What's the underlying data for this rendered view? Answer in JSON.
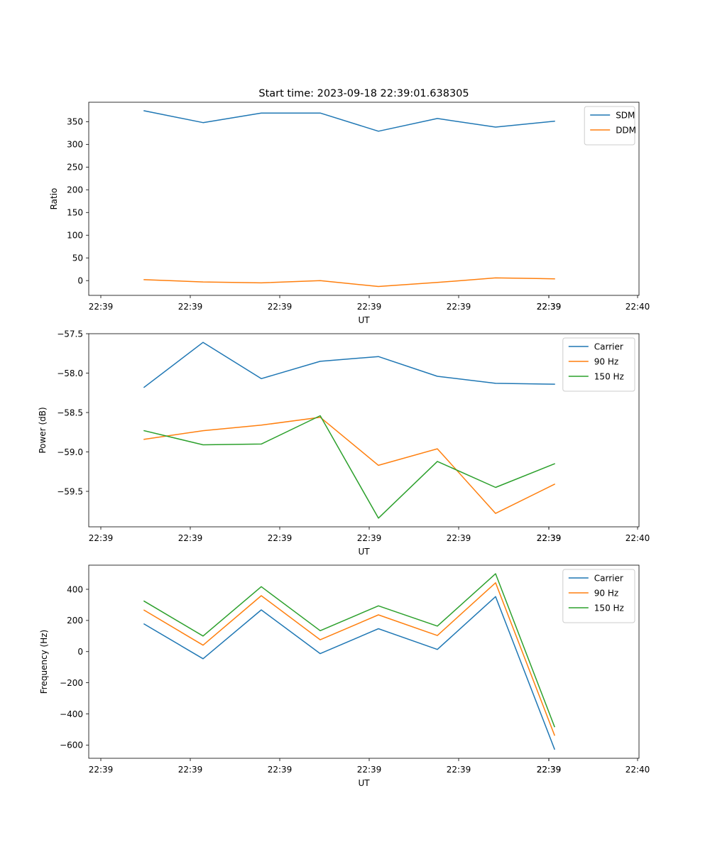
{
  "figure_title": "Start time: 2023-09-18 22:39:01.638305",
  "chart_data": [
    {
      "type": "line",
      "title": "Start time: 2023-09-18 22:39:01.638305",
      "xlabel": "UT",
      "ylabel": "Ratio",
      "x_ticks": [
        "22:39",
        "22:39",
        "22:39",
        "22:39",
        "22:39",
        "22:39",
        "22:39",
        "22:40"
      ],
      "y_ticks": [
        "0",
        "50",
        "100",
        "150",
        "200",
        "250",
        "300",
        "350"
      ],
      "y_tick_values": [
        0,
        50,
        100,
        150,
        200,
        250,
        300,
        350
      ],
      "ylim": [
        -32.5,
        392.8
      ],
      "legend_position": "top-right",
      "series": [
        {
          "name": "SDM",
          "color": "#1f77b4",
          "values": [
            374,
            348,
            369,
            369,
            329,
            357,
            338,
            351
          ]
        },
        {
          "name": "DDM",
          "color": "#ff7f0e",
          "values": [
            2,
            -3,
            -5,
            0,
            -13,
            -4,
            6,
            4
          ]
        }
      ]
    },
    {
      "type": "line",
      "title": "",
      "xlabel": "UT",
      "ylabel": "Power (dB)",
      "x_ticks": [
        "22:39",
        "22:39",
        "22:39",
        "22:39",
        "22:39",
        "22:39",
        "22:39",
        "22:40"
      ],
      "y_ticks": [
        "−57.5",
        "−58.0",
        "−58.5",
        "−59.0",
        "−59.5"
      ],
      "y_tick_values": [
        -57.5,
        -58.0,
        -58.5,
        -59.0,
        -59.5
      ],
      "ylim": [
        -59.95,
        -57.5
      ],
      "legend_position": "top-right",
      "series": [
        {
          "name": "Carrier",
          "color": "#1f77b4",
          "values": [
            -58.18,
            -57.61,
            -58.07,
            -57.85,
            -57.79,
            -58.04,
            -58.13,
            -58.14
          ]
        },
        {
          "name": "90 Hz",
          "color": "#ff7f0e",
          "values": [
            -58.84,
            -58.73,
            -58.66,
            -58.56,
            -59.17,
            -58.96,
            -59.78,
            -59.41
          ]
        },
        {
          "name": "150 Hz",
          "color": "#2ca02c",
          "values": [
            -58.73,
            -58.91,
            -58.9,
            -58.54,
            -59.84,
            -59.12,
            -59.45,
            -59.15
          ]
        }
      ]
    },
    {
      "type": "line",
      "title": "",
      "xlabel": "UT",
      "ylabel": "Frequency (Hz)",
      "x_ticks": [
        "22:39",
        "22:39",
        "22:39",
        "22:39",
        "22:39",
        "22:39",
        "22:39",
        "22:40"
      ],
      "y_ticks": [
        "400",
        "200",
        "0",
        "−200",
        "−400",
        "−600"
      ],
      "y_tick_values": [
        400,
        200,
        0,
        -200,
        -400,
        -600
      ],
      "ylim": [
        -685,
        555
      ],
      "legend_position": "top-right",
      "series": [
        {
          "name": "Carrier",
          "color": "#1f77b4",
          "values": [
            177,
            -46,
            268,
            -13,
            147,
            14,
            353,
            -626
          ]
        },
        {
          "name": "90 Hz",
          "color": "#ff7f0e",
          "values": [
            266,
            41,
            359,
            76,
            236,
            103,
            442,
            -537
          ]
        },
        {
          "name": "150 Hz",
          "color": "#2ca02c",
          "values": [
            324,
            100,
            417,
            134,
            294,
            164,
            500,
            -482
          ]
        }
      ]
    }
  ]
}
